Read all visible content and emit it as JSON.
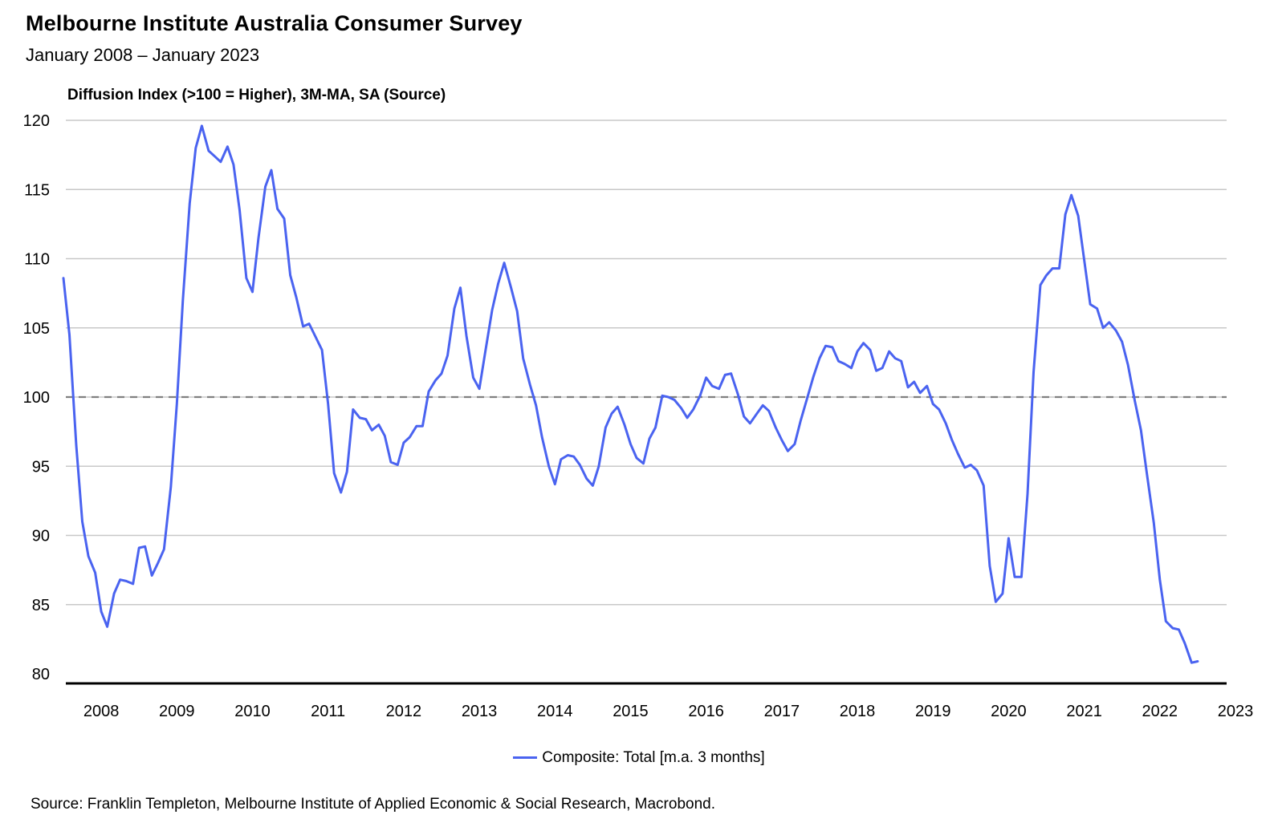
{
  "colors": {
    "series": "#4a63f0",
    "grid": "#c8c8c8",
    "reference": "#808080",
    "axis": "#000000"
  },
  "chart_data": {
    "type": "line",
    "title": "Melbourne Institute Australia Consumer Survey",
    "subtitle": "January 2008 – January 2023",
    "ylabel": "Diffusion Index (>100 = Higher), 3M-MA, SA (Source)",
    "xlabel": "",
    "ylim": [
      80,
      120
    ],
    "xlim": [
      2008.0,
      2023.5
    ],
    "y_ticks": [
      120,
      115,
      110,
      105,
      100,
      95,
      90,
      85,
      80
    ],
    "x_ticks": [
      "2008",
      "2009",
      "2010",
      "2011",
      "2012",
      "2013",
      "2014",
      "2015",
      "2016",
      "2017",
      "2018",
      "2019",
      "2020",
      "2021",
      "2022",
      "2023"
    ],
    "reference_line": 100,
    "legend": "Composite: Total [m.a. 3 months]",
    "source": "Source: Franklin Templeton, Melbourne Institute of Applied Economic & Social Research, Macrobond.",
    "series": [
      {
        "name": "Composite: Total [m.a. 3 months]",
        "points": [
          [
            2008.0,
            108.6
          ],
          [
            2008.08,
            104.5
          ],
          [
            2008.17,
            96.5
          ],
          [
            2008.25,
            91.0
          ],
          [
            2008.33,
            88.5
          ],
          [
            2008.42,
            87.3
          ],
          [
            2008.5,
            84.5
          ],
          [
            2008.58,
            83.4
          ],
          [
            2008.67,
            85.8
          ],
          [
            2008.75,
            86.8
          ],
          [
            2008.83,
            86.7
          ],
          [
            2008.92,
            86.5
          ],
          [
            2009.0,
            89.1
          ],
          [
            2009.08,
            89.2
          ],
          [
            2009.17,
            87.1
          ],
          [
            2009.25,
            88.0
          ],
          [
            2009.33,
            89.0
          ],
          [
            2009.42,
            93.5
          ],
          [
            2009.5,
            99.5
          ],
          [
            2009.58,
            107.0
          ],
          [
            2009.67,
            114.0
          ],
          [
            2009.75,
            118.0
          ],
          [
            2009.83,
            119.6
          ],
          [
            2009.92,
            117.8
          ],
          [
            2010.0,
            117.4
          ],
          [
            2010.08,
            117.0
          ],
          [
            2010.17,
            118.1
          ],
          [
            2010.25,
            116.8
          ],
          [
            2010.33,
            113.5
          ],
          [
            2010.42,
            108.6
          ],
          [
            2010.5,
            107.6
          ],
          [
            2010.58,
            111.5
          ],
          [
            2010.67,
            115.2
          ],
          [
            2010.75,
            116.4
          ],
          [
            2010.83,
            113.6
          ],
          [
            2010.92,
            112.9
          ],
          [
            2011.0,
            108.8
          ],
          [
            2011.08,
            107.2
          ],
          [
            2011.17,
            105.1
          ],
          [
            2011.25,
            105.3
          ],
          [
            2011.33,
            104.4
          ],
          [
            2011.42,
            103.4
          ],
          [
            2011.5,
            99.5
          ],
          [
            2011.58,
            94.5
          ],
          [
            2011.67,
            93.1
          ],
          [
            2011.75,
            94.6
          ],
          [
            2011.83,
            99.1
          ],
          [
            2011.92,
            98.5
          ],
          [
            2012.0,
            98.4
          ],
          [
            2012.08,
            97.6
          ],
          [
            2012.17,
            98.0
          ],
          [
            2012.25,
            97.2
          ],
          [
            2012.33,
            95.3
          ],
          [
            2012.42,
            95.1
          ],
          [
            2012.5,
            96.7
          ],
          [
            2012.58,
            97.1
          ],
          [
            2012.67,
            97.9
          ],
          [
            2012.75,
            97.9
          ],
          [
            2012.83,
            100.4
          ],
          [
            2012.92,
            101.2
          ],
          [
            2013.0,
            101.7
          ],
          [
            2013.08,
            103.0
          ],
          [
            2013.17,
            106.4
          ],
          [
            2013.25,
            107.9
          ],
          [
            2013.33,
            104.4
          ],
          [
            2013.42,
            101.4
          ],
          [
            2013.5,
            100.6
          ],
          [
            2013.58,
            103.3
          ],
          [
            2013.67,
            106.3
          ],
          [
            2013.75,
            108.2
          ],
          [
            2013.83,
            109.7
          ],
          [
            2013.92,
            107.9
          ],
          [
            2014.0,
            106.2
          ],
          [
            2014.08,
            102.8
          ],
          [
            2014.17,
            100.9
          ],
          [
            2014.25,
            99.4
          ],
          [
            2014.33,
            97.1
          ],
          [
            2014.42,
            95.0
          ],
          [
            2014.5,
            93.7
          ],
          [
            2014.58,
            95.5
          ],
          [
            2014.67,
            95.8
          ],
          [
            2014.75,
            95.7
          ],
          [
            2014.83,
            95.1
          ],
          [
            2014.92,
            94.1
          ],
          [
            2015.0,
            93.6
          ],
          [
            2015.08,
            95.0
          ],
          [
            2015.17,
            97.8
          ],
          [
            2015.25,
            98.8
          ],
          [
            2015.33,
            99.3
          ],
          [
            2015.42,
            98.0
          ],
          [
            2015.5,
            96.6
          ],
          [
            2015.58,
            95.6
          ],
          [
            2015.67,
            95.2
          ],
          [
            2015.75,
            97.0
          ],
          [
            2015.83,
            97.8
          ],
          [
            2015.92,
            100.1
          ],
          [
            2016.0,
            100.0
          ],
          [
            2016.08,
            99.8
          ],
          [
            2016.17,
            99.2
          ],
          [
            2016.25,
            98.5
          ],
          [
            2016.33,
            99.1
          ],
          [
            2016.42,
            100.1
          ],
          [
            2016.5,
            101.4
          ],
          [
            2016.58,
            100.8
          ],
          [
            2016.67,
            100.6
          ],
          [
            2016.75,
            101.6
          ],
          [
            2016.83,
            101.7
          ],
          [
            2016.92,
            100.2
          ],
          [
            2017.0,
            98.6
          ],
          [
            2017.08,
            98.1
          ],
          [
            2017.17,
            98.8
          ],
          [
            2017.25,
            99.4
          ],
          [
            2017.33,
            99.0
          ],
          [
            2017.42,
            97.8
          ],
          [
            2017.5,
            96.9
          ],
          [
            2017.58,
            96.1
          ],
          [
            2017.67,
            96.6
          ],
          [
            2017.75,
            98.3
          ],
          [
            2017.83,
            99.8
          ],
          [
            2017.92,
            101.5
          ],
          [
            2018.0,
            102.8
          ],
          [
            2018.08,
            103.7
          ],
          [
            2018.17,
            103.6
          ],
          [
            2018.25,
            102.6
          ],
          [
            2018.33,
            102.4
          ],
          [
            2018.42,
            102.1
          ],
          [
            2018.5,
            103.3
          ],
          [
            2018.58,
            103.9
          ],
          [
            2018.67,
            103.4
          ],
          [
            2018.75,
            101.9
          ],
          [
            2018.83,
            102.1
          ],
          [
            2018.92,
            103.3
          ],
          [
            2019.0,
            102.8
          ],
          [
            2019.08,
            102.6
          ],
          [
            2019.17,
            100.7
          ],
          [
            2019.25,
            101.1
          ],
          [
            2019.33,
            100.3
          ],
          [
            2019.42,
            100.8
          ],
          [
            2019.5,
            99.5
          ],
          [
            2019.58,
            99.1
          ],
          [
            2019.67,
            98.1
          ],
          [
            2019.75,
            96.9
          ],
          [
            2019.83,
            95.9
          ],
          [
            2019.92,
            94.9
          ],
          [
            2020.0,
            95.1
          ],
          [
            2020.08,
            94.7
          ],
          [
            2020.17,
            93.6
          ],
          [
            2020.25,
            87.8
          ],
          [
            2020.33,
            85.2
          ],
          [
            2020.42,
            85.8
          ],
          [
            2020.5,
            89.8
          ],
          [
            2020.58,
            87.0
          ],
          [
            2020.67,
            87.0
          ],
          [
            2020.75,
            93.0
          ],
          [
            2020.83,
            101.8
          ],
          [
            2020.92,
            108.1
          ],
          [
            2021.0,
            108.8
          ],
          [
            2021.08,
            109.3
          ],
          [
            2021.17,
            109.3
          ],
          [
            2021.25,
            113.2
          ],
          [
            2021.33,
            114.6
          ],
          [
            2021.42,
            113.1
          ],
          [
            2021.5,
            109.9
          ],
          [
            2021.58,
            106.7
          ],
          [
            2021.67,
            106.4
          ],
          [
            2021.75,
            105.0
          ],
          [
            2021.83,
            105.4
          ],
          [
            2021.92,
            104.8
          ],
          [
            2022.0,
            104.0
          ],
          [
            2022.08,
            102.3
          ],
          [
            2022.17,
            99.7
          ],
          [
            2022.25,
            97.6
          ],
          [
            2022.33,
            94.4
          ],
          [
            2022.42,
            90.9
          ],
          [
            2022.5,
            86.8
          ],
          [
            2022.58,
            83.8
          ],
          [
            2022.67,
            83.3
          ],
          [
            2022.75,
            83.2
          ],
          [
            2022.83,
            82.2
          ],
          [
            2022.92,
            80.8
          ],
          [
            2023.0,
            80.9
          ]
        ]
      }
    ]
  }
}
